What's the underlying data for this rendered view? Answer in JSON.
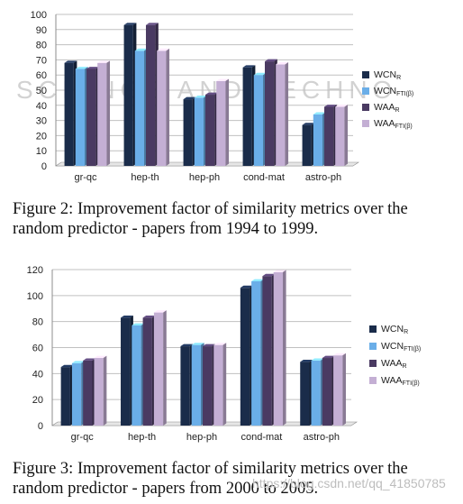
{
  "watermark": {
    "top_text": "SCIENCE AND TECHNO",
    "bottom_text": "https://blog.csdn.net/qq_41850785"
  },
  "captions": {
    "figure2": "Figure 2: Improvement factor of similarity metrics over the random predictor - papers from 1994 to 1999.",
    "figure3": "Figure 3: Improvement factor of similarity metrics over the random predictor - papers from 2000 to 2005."
  },
  "colors": {
    "series": [
      "#1a2c4a",
      "#6aaee8",
      "#4a3a62",
      "#c4afd4"
    ],
    "axis": "#8c8c8c",
    "grid": "#c0c0c0"
  },
  "chart_data": [
    {
      "type": "bar",
      "categories": [
        "gr-qc",
        "hep-th",
        "hep-ph",
        "cond-mat",
        "astro-ph"
      ],
      "series": [
        {
          "name": "WCN",
          "sub": "R",
          "values": [
            68,
            93,
            44,
            65,
            27
          ]
        },
        {
          "name": "WCN",
          "sub": "FTI(β)",
          "values": [
            64,
            76,
            45,
            60,
            34
          ]
        },
        {
          "name": "WAA",
          "sub": "R",
          "values": [
            64,
            93,
            47,
            69,
            39
          ]
        },
        {
          "name": "WAA",
          "sub": "FTI(β)",
          "values": [
            68,
            76,
            56,
            67,
            39
          ]
        }
      ],
      "ylim": [
        0,
        100
      ],
      "yticks": [
        0,
        10,
        20,
        30,
        40,
        50,
        60,
        70,
        80,
        90,
        100
      ],
      "grid": true,
      "legend_position": "right"
    },
    {
      "type": "bar",
      "categories": [
        "gr-qc",
        "hep-th",
        "hep-ph",
        "cond-mat",
        "astro-ph"
      ],
      "series": [
        {
          "name": "WCN",
          "sub": "R",
          "values": [
            45,
            83,
            61,
            106,
            49
          ]
        },
        {
          "name": "WCN",
          "sub": "FTI(β)",
          "values": [
            48,
            77,
            62,
            111,
            50
          ]
        },
        {
          "name": "WAA",
          "sub": "R",
          "values": [
            50,
            83,
            61,
            115,
            52
          ]
        },
        {
          "name": "WAA",
          "sub": "FTI(β)",
          "values": [
            52,
            87,
            62,
            118,
            54
          ]
        }
      ],
      "ylim": [
        0,
        120
      ],
      "yticks": [
        0,
        20,
        40,
        60,
        80,
        100,
        120
      ],
      "grid": true,
      "legend_position": "right"
    }
  ]
}
